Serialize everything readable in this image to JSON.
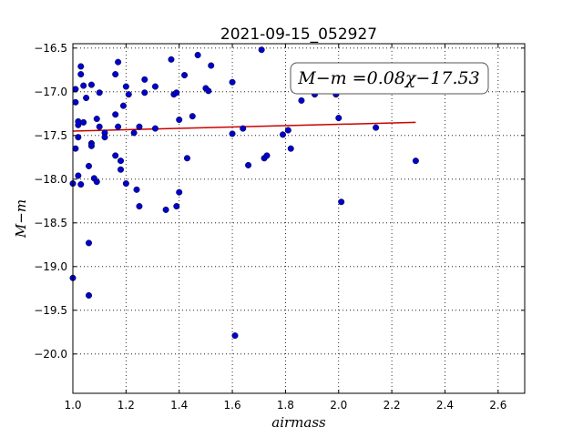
{
  "chart_data": {
    "type": "scatter",
    "title": "2021-09-15_052927",
    "xlabel": "airmass",
    "ylabel": "M−m",
    "xlim": [
      1.0,
      2.7
    ],
    "ylim": [
      -20.45,
      -16.45
    ],
    "y_inverted": true,
    "grid": true,
    "x_ticks": [
      "1.0",
      "1.2",
      "1.4",
      "1.6",
      "1.8",
      "2.0",
      "2.2",
      "2.4",
      "2.6"
    ],
    "y_ticks": [
      "−16.5",
      "−17.0",
      "−17.5",
      "−18.0",
      "−18.5",
      "−19.0",
      "−19.5",
      "−20.0"
    ],
    "y_tick_values": [
      -16.5,
      -17.0,
      -17.5,
      -18.0,
      -18.5,
      -19.0,
      -19.5,
      -20.0
    ],
    "x_tick_values": [
      1.0,
      1.2,
      1.4,
      1.6,
      1.8,
      2.0,
      2.2,
      2.4,
      2.6
    ],
    "fit_label": "M−m =0.08χ−17.53",
    "fit_line": {
      "x": [
        1.0,
        2.29
      ],
      "y": [
        -17.45,
        -17.35
      ],
      "color": "#cc0000"
    },
    "point_color": "#0000cc",
    "points": [
      [
        1.0,
        -18.05
      ],
      [
        1.0,
        -19.13
      ],
      [
        1.01,
        -17.12
      ],
      [
        1.01,
        -16.97
      ],
      [
        1.01,
        -17.65
      ],
      [
        1.02,
        -17.38
      ],
      [
        1.02,
        -17.52
      ],
      [
        1.02,
        -17.96
      ],
      [
        1.02,
        -17.34
      ],
      [
        1.03,
        -16.71
      ],
      [
        1.03,
        -16.8
      ],
      [
        1.03,
        -18.06
      ],
      [
        1.04,
        -16.93
      ],
      [
        1.04,
        -17.35
      ],
      [
        1.05,
        -17.07
      ],
      [
        1.06,
        -17.85
      ],
      [
        1.06,
        -19.33
      ],
      [
        1.06,
        -18.73
      ],
      [
        1.07,
        -16.92
      ],
      [
        1.07,
        -17.59
      ],
      [
        1.07,
        -17.62
      ],
      [
        1.08,
        -17.99
      ],
      [
        1.09,
        -17.31
      ],
      [
        1.09,
        -18.03
      ],
      [
        1.1,
        -17.01
      ],
      [
        1.1,
        -17.4
      ],
      [
        1.12,
        -17.47
      ],
      [
        1.12,
        -17.52
      ],
      [
        1.16,
        -16.8
      ],
      [
        1.16,
        -17.26
      ],
      [
        1.16,
        -17.73
      ],
      [
        1.17,
        -16.66
      ],
      [
        1.17,
        -17.4
      ],
      [
        1.18,
        -17.79
      ],
      [
        1.18,
        -17.89
      ],
      [
        1.19,
        -17.16
      ],
      [
        1.2,
        -16.94
      ],
      [
        1.2,
        -18.05
      ],
      [
        1.21,
        -17.03
      ],
      [
        1.23,
        -17.47
      ],
      [
        1.24,
        -18.12
      ],
      [
        1.25,
        -17.4
      ],
      [
        1.25,
        -18.31
      ],
      [
        1.27,
        -17.01
      ],
      [
        1.27,
        -16.86
      ],
      [
        1.31,
        -16.94
      ],
      [
        1.31,
        -17.42
      ],
      [
        1.35,
        -18.35
      ],
      [
        1.37,
        -16.63
      ],
      [
        1.38,
        -17.03
      ],
      [
        1.39,
        -17.01
      ],
      [
        1.39,
        -18.31
      ],
      [
        1.4,
        -17.32
      ],
      [
        1.4,
        -18.15
      ],
      [
        1.42,
        -16.81
      ],
      [
        1.43,
        -17.76
      ],
      [
        1.45,
        -17.28
      ],
      [
        1.47,
        -16.58
      ],
      [
        1.5,
        -16.96
      ],
      [
        1.51,
        -16.99
      ],
      [
        1.52,
        -16.7
      ],
      [
        1.6,
        -16.89
      ],
      [
        1.6,
        -17.48
      ],
      [
        1.61,
        -19.79
      ],
      [
        1.64,
        -17.42
      ],
      [
        1.66,
        -17.84
      ],
      [
        1.71,
        -16.52
      ],
      [
        1.72,
        -17.76
      ],
      [
        1.73,
        -17.73
      ],
      [
        1.79,
        -17.49
      ],
      [
        1.81,
        -17.44
      ],
      [
        1.82,
        -17.65
      ],
      [
        1.86,
        -17.1
      ],
      [
        1.91,
        -17.03
      ],
      [
        1.99,
        -17.03
      ],
      [
        2.0,
        -17.3
      ],
      [
        2.01,
        -18.26
      ],
      [
        2.14,
        -17.41
      ],
      [
        2.29,
        -17.79
      ]
    ]
  }
}
